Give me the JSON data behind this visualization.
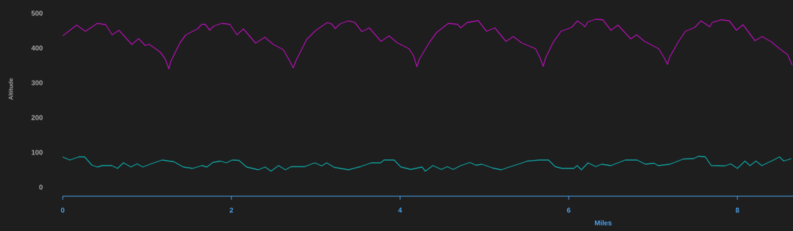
{
  "chart_data": {
    "type": "line",
    "xlabel": "Miles",
    "ylabel": "Altitude",
    "xlim": [
      0,
      8.66
    ],
    "ylim": [
      -26,
      500
    ],
    "xticks": [
      0,
      2,
      4,
      6,
      8
    ],
    "yticks": [
      0,
      100,
      200,
      300,
      400,
      500
    ],
    "series": [
      {
        "color": "#b010b0",
        "x": [
          0,
          0.165,
          0.27,
          0.41,
          0.51,
          0.587,
          0.667,
          0.82,
          0.9,
          0.978,
          1.025,
          1.157,
          1.217,
          1.259,
          1.281,
          1.391,
          1.46,
          1.6,
          1.647,
          1.69,
          1.744,
          1.79,
          1.887,
          1.983,
          2.066,
          2.143,
          2.287,
          2.397,
          2.493,
          2.617,
          2.686,
          2.733,
          2.769,
          2.893,
          3.003,
          3.135,
          3.19,
          3.231,
          3.292,
          3.388,
          3.465,
          3.548,
          3.636,
          3.774,
          3.87,
          3.967,
          4.105,
          4.16,
          4.2,
          4.229,
          4.353,
          4.435,
          4.573,
          4.683,
          4.719,
          4.793,
          4.926,
          5.027,
          5.124,
          5.256,
          5.344,
          5.44,
          5.606,
          5.661,
          5.697,
          5.725,
          5.813,
          5.909,
          6.033,
          6.102,
          6.157,
          6.193,
          6.226,
          6.322,
          6.405,
          6.501,
          6.584,
          6.736,
          6.804,
          6.901,
          7.066,
          7.135,
          7.171,
          7.196,
          7.3,
          7.383,
          7.493,
          7.57,
          7.672,
          7.7,
          7.81,
          7.906,
          7.989,
          8.066,
          8.209,
          8.292,
          8.402,
          8.485,
          8.595,
          8.65
        ],
        "values": [
          435,
          466,
          448,
          471,
          467,
          438,
          451,
          410,
          427,
          407,
          411,
          388,
          368,
          340,
          361,
          415,
          438,
          455,
          468,
          468,
          451,
          463,
          471,
          468,
          438,
          455,
          414,
          431,
          411,
          395,
          365,
          343,
          365,
          425,
          451,
          473,
          469,
          456,
          470,
          478,
          473,
          447,
          458,
          419,
          435,
          415,
          398,
          378,
          346,
          368,
          418,
          445,
          471,
          468,
          458,
          473,
          479,
          448,
          458,
          419,
          433,
          415,
          398,
          371,
          347,
          371,
          415,
          448,
          459,
          478,
          469,
          461,
          475,
          483,
          481,
          451,
          466,
          426,
          438,
          419,
          398,
          371,
          353,
          373,
          418,
          448,
          459,
          478,
          461,
          473,
          481,
          478,
          451,
          467,
          421,
          433,
          418,
          401,
          381,
          351
        ]
      },
      {
        "color": "#10a0a0",
        "x": [
          0,
          0.083,
          0.19,
          0.26,
          0.347,
          0.41,
          0.47,
          0.58,
          0.65,
          0.72,
          0.81,
          0.88,
          0.95,
          1.07,
          1.18,
          1.32,
          1.43,
          1.54,
          1.65,
          1.71,
          1.78,
          1.87,
          1.94,
          2.01,
          2.09,
          2.18,
          2.32,
          2.4,
          2.47,
          2.56,
          2.64,
          2.71,
          2.87,
          2.99,
          3.07,
          3.13,
          3.22,
          3.39,
          3.53,
          3.66,
          3.77,
          3.81,
          3.93,
          4.01,
          4.13,
          4.26,
          4.3,
          4.39,
          4.49,
          4.56,
          4.63,
          4.72,
          4.83,
          4.9,
          4.97,
          5.1,
          5.2,
          5.31,
          5.44,
          5.51,
          5.65,
          5.76,
          5.84,
          5.92,
          6.06,
          6.1,
          6.15,
          6.23,
          6.32,
          6.39,
          6.5,
          6.67,
          6.81,
          6.91,
          7.01,
          7.06,
          7.2,
          7.36,
          7.48,
          7.54,
          7.62,
          7.69,
          7.85,
          7.92,
          8.0,
          8.09,
          8.15,
          8.22,
          8.29,
          8.42,
          8.5,
          8.55,
          8.64
        ],
        "values": [
          87,
          78,
          87,
          87,
          63,
          58,
          62,
          62,
          54,
          70,
          58,
          67,
          58,
          69,
          78,
          73,
          58,
          54,
          62,
          58,
          71,
          75,
          70,
          78,
          77,
          58,
          50,
          58,
          46,
          62,
          50,
          59,
          59,
          70,
          61,
          70,
          57,
          50,
          59,
          70,
          70,
          78,
          78,
          58,
          51,
          58,
          46,
          62,
          51,
          59,
          51,
          62,
          71,
          63,
          66,
          55,
          50,
          59,
          69,
          75,
          78,
          78,
          59,
          54,
          54,
          62,
          50,
          70,
          59,
          66,
          62,
          78,
          78,
          66,
          69,
          62,
          66,
          81,
          82,
          89,
          87,
          62,
          61,
          67,
          54,
          75,
          62,
          75,
          62,
          77,
          87,
          75,
          82
        ]
      }
    ]
  }
}
